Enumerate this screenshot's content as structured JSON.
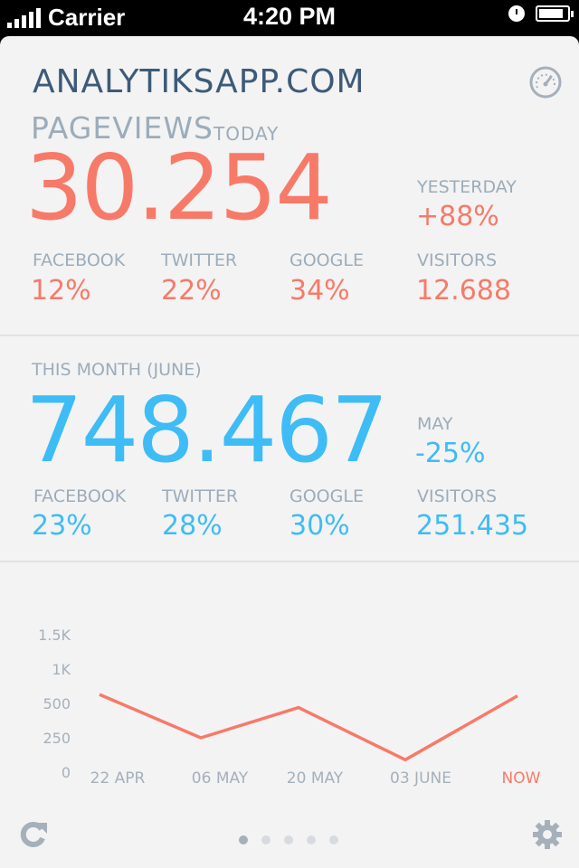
{
  "status_bar": {
    "carrier": "Carrier",
    "time": "4:20 PM"
  },
  "header": {
    "brand": "ANALYTIKSAPP.COM",
    "gauge_icon": "speedometer-icon"
  },
  "today": {
    "title": "PAGEVIEWS",
    "subtitle": "TODAY",
    "value": "30.254",
    "compare_label": "YESTERDAY",
    "compare_value": "+88%",
    "breakdown": [
      {
        "label": "FACEBOOK",
        "value": "12%"
      },
      {
        "label": "TWITTER",
        "value": "22%"
      },
      {
        "label": "GOOGLE",
        "value": "34%"
      },
      {
        "label": "VISITORS",
        "value": "12.688"
      }
    ],
    "accent": "#f77a69"
  },
  "month": {
    "title": "THIS MONTH (JUNE)",
    "value": "748.467",
    "compare_label": "MAY",
    "compare_value": "-25%",
    "breakdown": [
      {
        "label": "FACEBOOK",
        "value": "23%"
      },
      {
        "label": "TWITTER",
        "value": "28%"
      },
      {
        "label": "GOOGLE",
        "value": "30%"
      },
      {
        "label": "VISITORS",
        "value": "251.435"
      }
    ],
    "accent": "#3ebcf5"
  },
  "chart_data": {
    "type": "line",
    "x": [
      "22 APR",
      "06 MAY",
      "20 MAY",
      "03 JUNE",
      "NOW"
    ],
    "y_ticks": [
      "1.5K",
      "1K",
      "500",
      "250",
      "0"
    ],
    "series": [
      {
        "values": [
          630,
          250,
          470,
          90,
          610
        ],
        "color": "#f77a69"
      }
    ],
    "highlight_label_color": "#f77a69"
  },
  "footer": {
    "refresh_icon": "refresh-icon",
    "settings_icon": "gear-icon",
    "pages": 5,
    "active_page": 1
  }
}
